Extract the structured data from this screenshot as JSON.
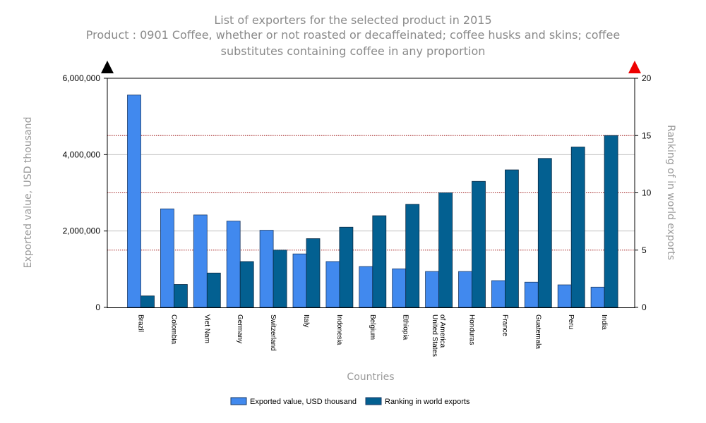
{
  "chart_data": {
    "type": "bar",
    "title": "List of exporters for the selected product in 2015",
    "subtitle_lines": [
      "Product : 0901 Coffee, whether or not roasted or decaffeinated; coffee husks and skins; coffee",
      "substitutes containing coffee in any proportion"
    ],
    "xlabel": "Countries",
    "ylabel_left": "Exported value, USD thousand",
    "ylabel_right": "Ranking of in world exports",
    "ylim_left": [
      0,
      6000000
    ],
    "ylim_right": [
      0,
      20
    ],
    "left_ticks": [
      {
        "value": 0,
        "label": "0"
      },
      {
        "value": 2000000,
        "label": "2,000,000"
      },
      {
        "value": 4000000,
        "label": "4,000,000"
      },
      {
        "value": 6000000,
        "label": "6,000,000"
      }
    ],
    "right_ticks": [
      {
        "value": 0,
        "label": "0"
      },
      {
        "value": 5,
        "label": "5"
      },
      {
        "value": 10,
        "label": "10"
      },
      {
        "value": 15,
        "label": "15"
      },
      {
        "value": 20,
        "label": "20"
      }
    ],
    "categories": [
      [
        "Brazil"
      ],
      [
        "Colombia"
      ],
      [
        "Viet Nam"
      ],
      [
        "Germany"
      ],
      [
        "Switzerland"
      ],
      [
        "Italy"
      ],
      [
        "Indonesia"
      ],
      [
        "Belgium"
      ],
      [
        "Ethiopia"
      ],
      [
        "United States",
        "of America"
      ],
      [
        "Honduras"
      ],
      [
        "France"
      ],
      [
        "Guatemala"
      ],
      [
        "Peru"
      ],
      [
        "India"
      ]
    ],
    "series": [
      {
        "name": "Exported value, USD thousand",
        "axis": "left",
        "color": "#4189ee",
        "values": [
          5560000,
          2580000,
          2420000,
          2260000,
          2020000,
          1400000,
          1200000,
          1070000,
          1010000,
          940000,
          940000,
          700000,
          660000,
          590000,
          530000
        ]
      },
      {
        "name": "Ranking in world exports",
        "axis": "right",
        "color": "#036091",
        "values": [
          1,
          2,
          3,
          4,
          5,
          6,
          7,
          8,
          9,
          10,
          11,
          12,
          13,
          14,
          15
        ]
      }
    ],
    "legend_position": "bottom",
    "colors": {
      "grid": "#c0c0c0",
      "grid_right": "#a01c1c",
      "left_marker": "#000000",
      "right_marker": "#ee0000",
      "text_muted": "#8a8a8a"
    }
  }
}
